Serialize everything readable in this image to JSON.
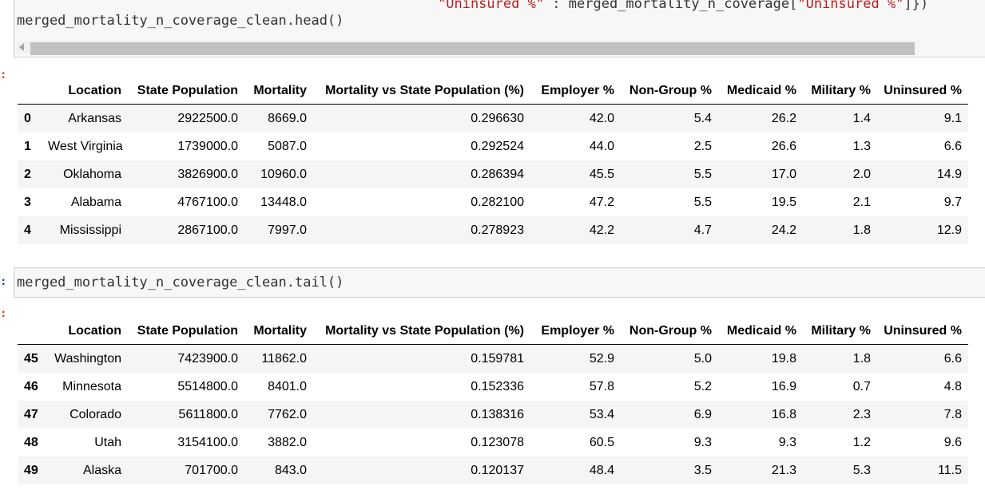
{
  "cells": {
    "top": {
      "partial_line": {
        "string_text": "\"Uninsured %\"",
        "colon": " : ",
        "expr_text": "merged_mortality_n_coverage[",
        "string_text_2": "\"Uninsured %\"",
        "tail": "]})"
      },
      "code": "merged_mortality_n_coverage_clean.head()"
    },
    "bottom": {
      "prompt": ":",
      "code": "merged_mortality_n_coverage_clean.tail()"
    },
    "output_prompt": ":"
  },
  "columns": [
    "",
    "Location",
    "State Population",
    "Mortality",
    "Mortality vs State Population (%)",
    "Employer %",
    "Non-Group %",
    "Medicaid %",
    "Military %",
    "Uninsured %"
  ],
  "head_rows": [
    [
      "0",
      "Arkansas",
      "2922500.0",
      "8669.0",
      "0.296630",
      "42.0",
      "5.4",
      "26.2",
      "1.4",
      "9.1"
    ],
    [
      "1",
      "West Virginia",
      "1739000.0",
      "5087.0",
      "0.292524",
      "44.0",
      "2.5",
      "26.6",
      "1.3",
      "6.6"
    ],
    [
      "2",
      "Oklahoma",
      "3826900.0",
      "10960.0",
      "0.286394",
      "45.5",
      "5.5",
      "17.0",
      "2.0",
      "14.9"
    ],
    [
      "3",
      "Alabama",
      "4767100.0",
      "13448.0",
      "0.282100",
      "47.2",
      "5.5",
      "19.5",
      "2.1",
      "9.7"
    ],
    [
      "4",
      "Mississippi",
      "2867100.0",
      "7997.0",
      "0.278923",
      "42.2",
      "4.7",
      "24.2",
      "1.8",
      "12.9"
    ]
  ],
  "tail_rows": [
    [
      "45",
      "Washington",
      "7423900.0",
      "11862.0",
      "0.159781",
      "52.9",
      "5.0",
      "19.8",
      "1.8",
      "6.6"
    ],
    [
      "46",
      "Minnesota",
      "5514800.0",
      "8401.0",
      "0.152336",
      "57.8",
      "5.2",
      "16.9",
      "0.7",
      "4.8"
    ],
    [
      "47",
      "Colorado",
      "5611800.0",
      "7762.0",
      "0.138316",
      "53.4",
      "6.9",
      "16.8",
      "2.3",
      "7.8"
    ],
    [
      "48",
      "Utah",
      "3154100.0",
      "3882.0",
      "0.123078",
      "60.5",
      "9.3",
      "9.3",
      "1.2",
      "9.6"
    ],
    [
      "49",
      "Alaska",
      "701700.0",
      "843.0",
      "0.120137",
      "48.4",
      "3.5",
      "21.3",
      "5.3",
      "11.5"
    ]
  ]
}
